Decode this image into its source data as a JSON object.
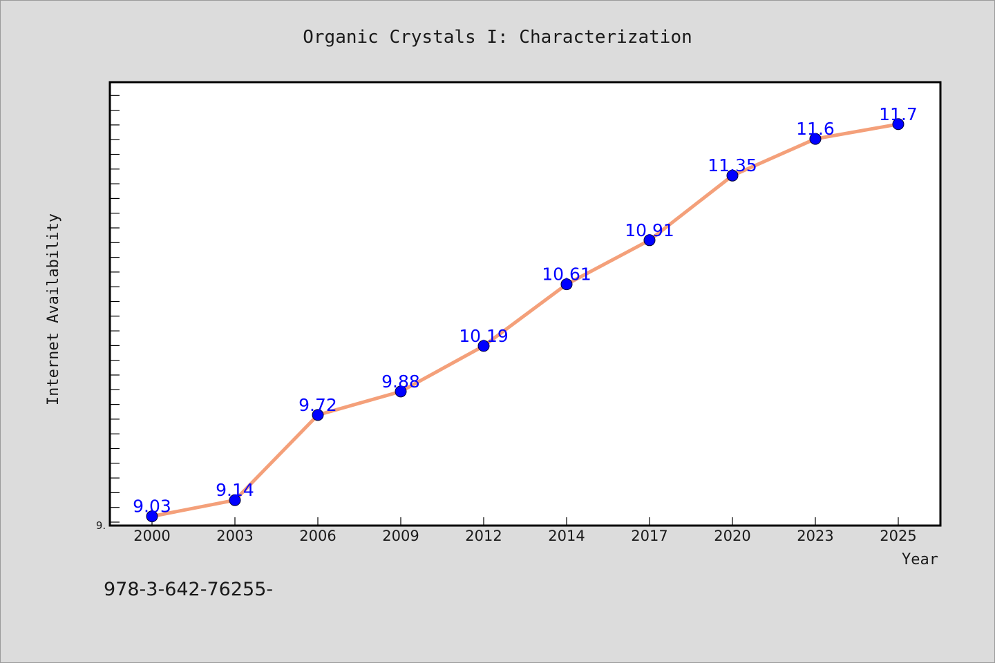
{
  "chart_data": {
    "type": "line",
    "title": "Organic Crystals I: Characterization",
    "xlabel": "Year",
    "ylabel": "Internet Availability",
    "categories": [
      "2000",
      "2003",
      "2006",
      "2009",
      "2012",
      "2014",
      "2017",
      "2020",
      "2023",
      "2025"
    ],
    "series": [
      {
        "values": [
          9.03,
          9.14,
          9.72,
          9.88,
          10.19,
          10.61,
          10.91,
          11.35,
          11.6,
          11.7
        ],
        "labels": [
          "9.03",
          "9.14",
          "9.72",
          "9.88",
          "10.19",
          "10.61",
          "10.91",
          "11.35",
          "11.6",
          "11.7"
        ]
      }
    ],
    "ylim": [
      9.0,
      12.0
    ],
    "ytick_label": "9.",
    "grid": false,
    "legend": "none",
    "colors": {
      "line": "#f4a07a",
      "marker": "#0000ff",
      "data_label": "#0000ff",
      "plot_bg": "#ffffff",
      "page_bg": "#dcdcdc"
    }
  },
  "footer": {
    "isbn": "978-3-642-76255-"
  }
}
